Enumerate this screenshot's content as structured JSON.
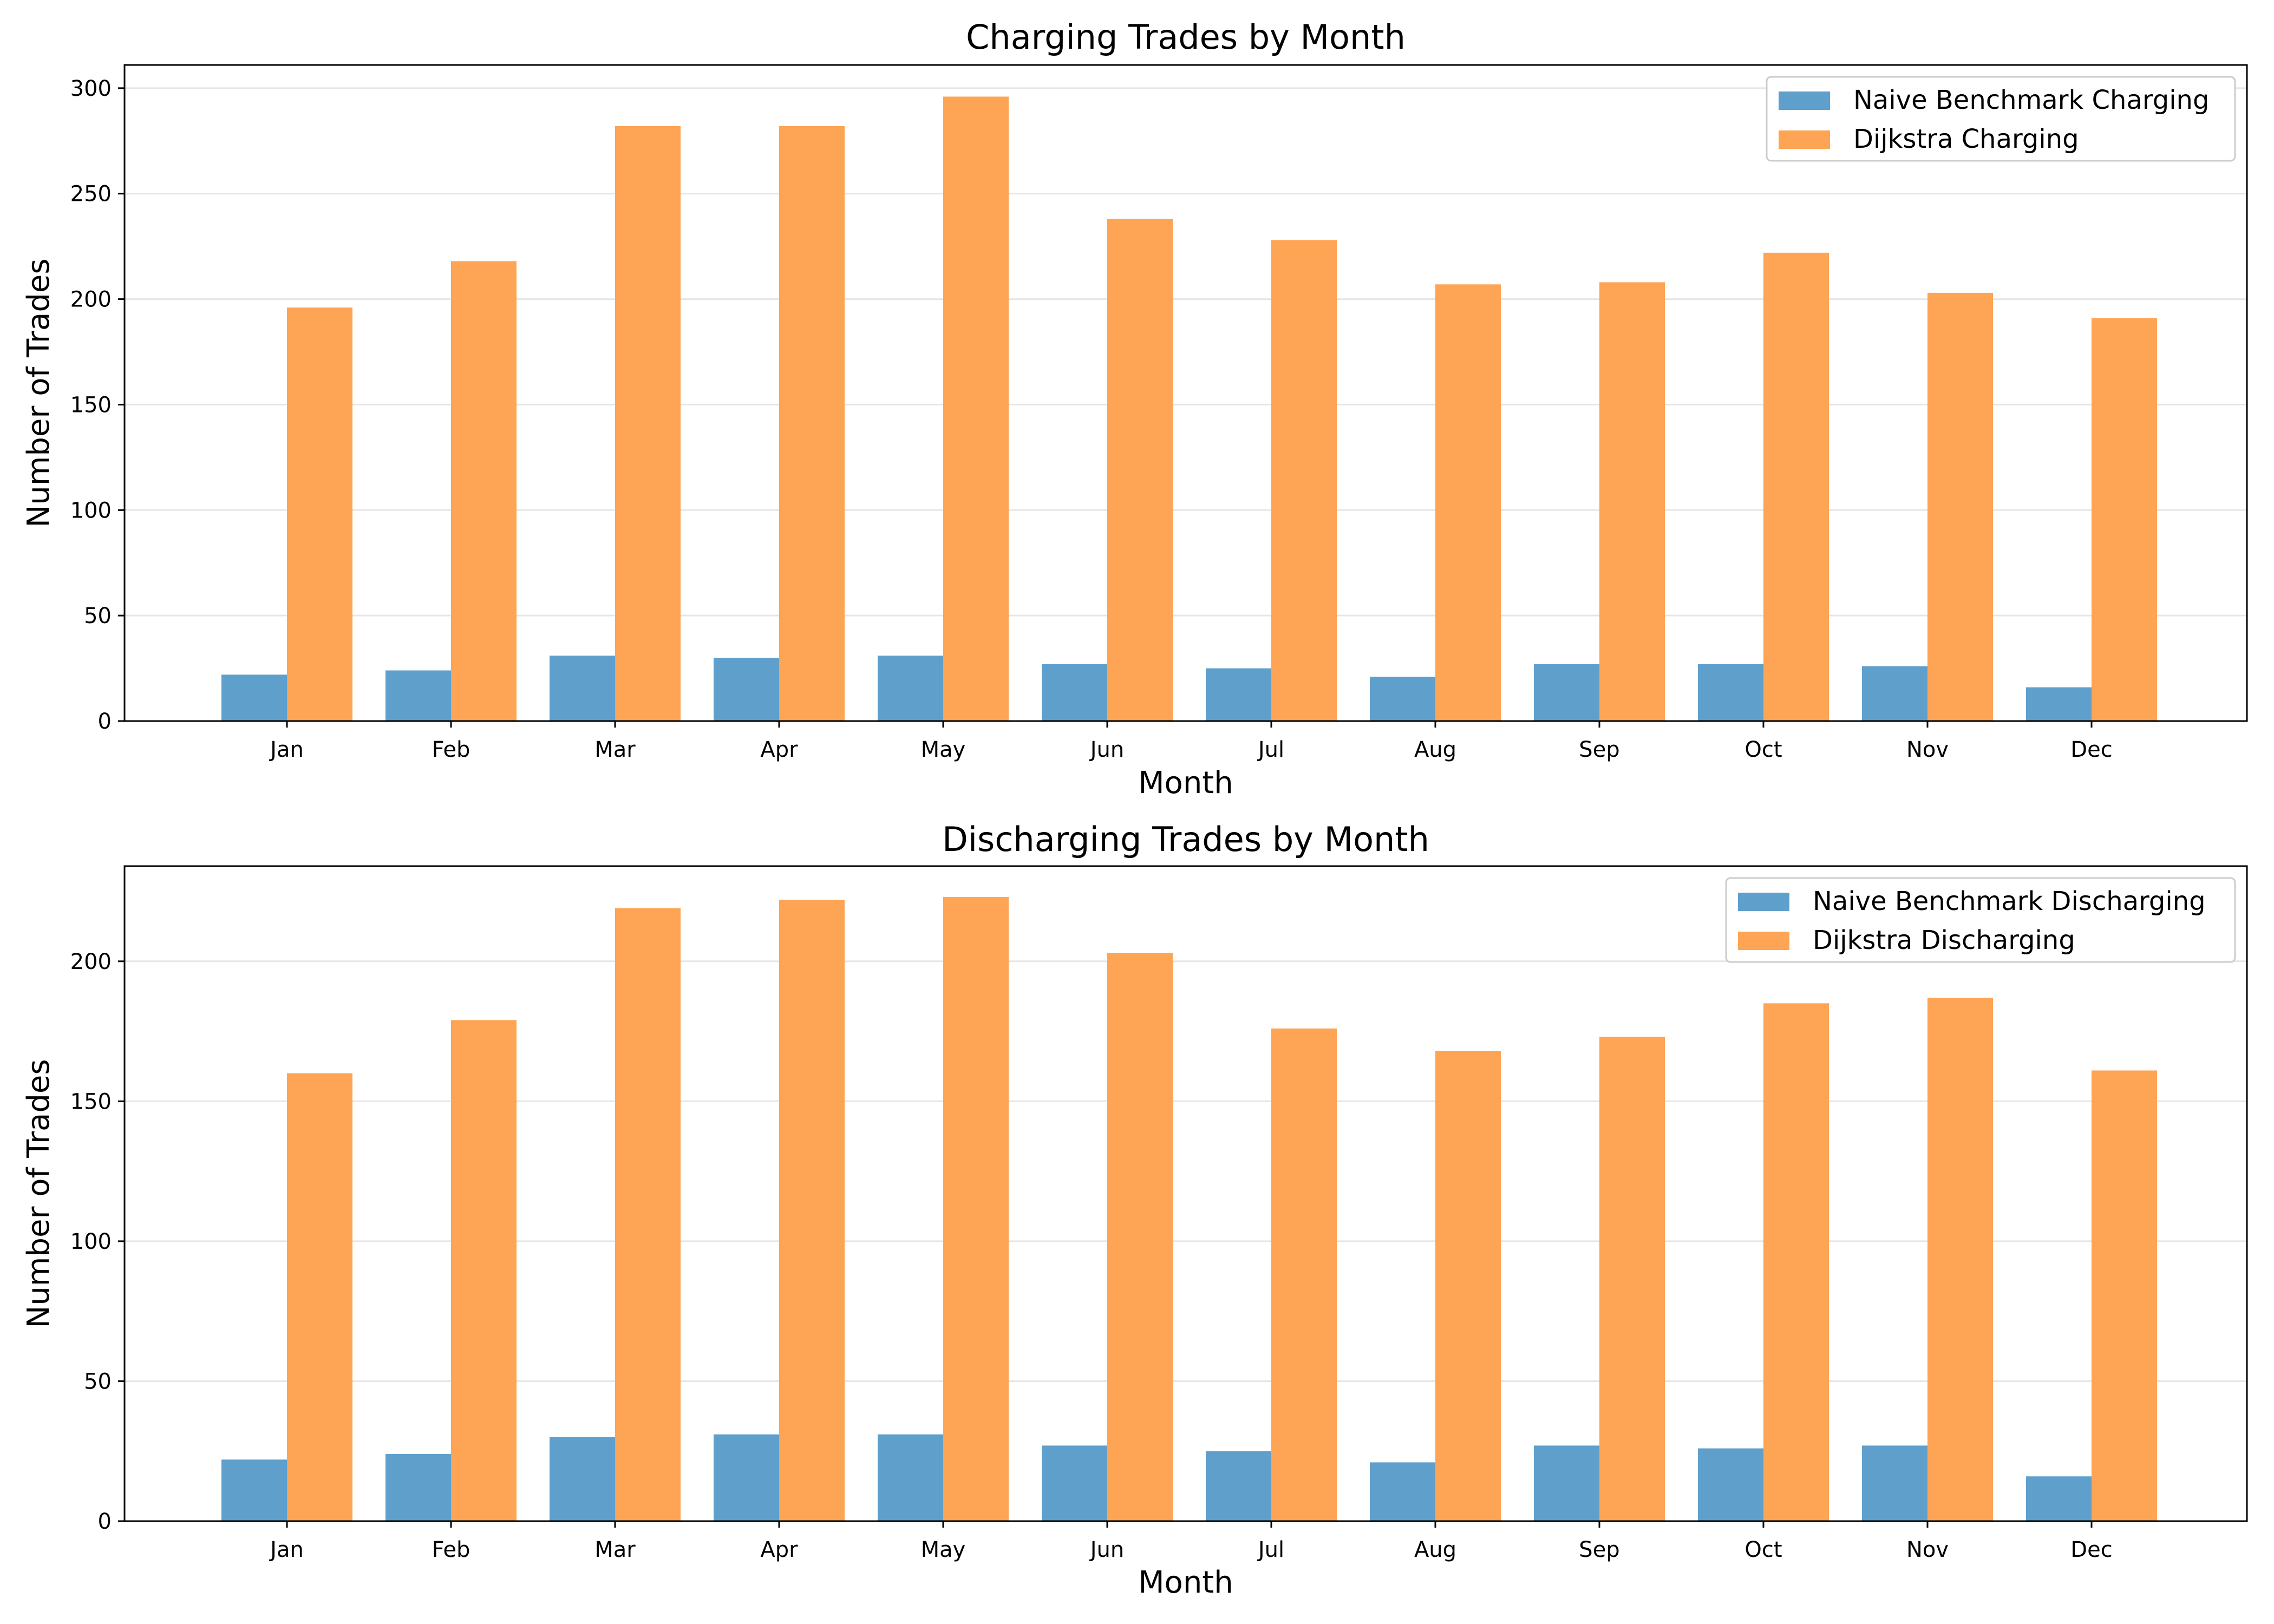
{
  "chart_data": [
    {
      "type": "bar",
      "title": "Charging Trades by Month",
      "xlabel": "Month",
      "ylabel": "Number of Trades",
      "categories": [
        "Jan",
        "Feb",
        "Mar",
        "Apr",
        "May",
        "Jun",
        "Jul",
        "Aug",
        "Sep",
        "Oct",
        "Nov",
        "Dec"
      ],
      "ylim": [
        0,
        311
      ],
      "yticks": [
        0,
        50,
        100,
        150,
        200,
        250,
        300
      ],
      "grid": "horizontal",
      "legend_position": "top-right",
      "series": [
        {
          "name": "Naive Benchmark Charging",
          "color": "#5f9fcc",
          "values": [
            22,
            24,
            31,
            30,
            31,
            27,
            25,
            21,
            27,
            27,
            26,
            16
          ]
        },
        {
          "name": "Dijkstra Charging",
          "color": "#fea455",
          "values": [
            196,
            218,
            282,
            282,
            296,
            238,
            228,
            207,
            208,
            222,
            203,
            191
          ]
        }
      ]
    },
    {
      "type": "bar",
      "title": "Discharging Trades by Month",
      "xlabel": "Month",
      "ylabel": "Number of Trades",
      "categories": [
        "Jan",
        "Feb",
        "Mar",
        "Apr",
        "May",
        "Jun",
        "Jul",
        "Aug",
        "Sep",
        "Oct",
        "Nov",
        "Dec"
      ],
      "ylim": [
        0,
        234
      ],
      "yticks": [
        0,
        50,
        100,
        150,
        200
      ],
      "grid": "horizontal",
      "legend_position": "top-right",
      "series": [
        {
          "name": "Naive Benchmark Discharging",
          "color": "#5f9fcc",
          "values": [
            22,
            24,
            30,
            31,
            31,
            27,
            25,
            21,
            27,
            26,
            27,
            16
          ]
        },
        {
          "name": "Dijkstra Discharging",
          "color": "#fea455",
          "values": [
            160,
            179,
            219,
            222,
            223,
            203,
            176,
            168,
            173,
            185,
            187,
            161
          ]
        }
      ]
    }
  ]
}
